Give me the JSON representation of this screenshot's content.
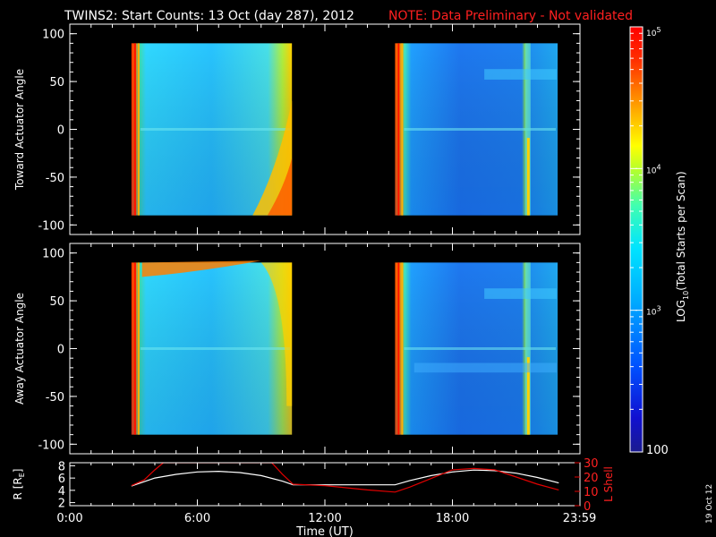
{
  "title": "TWINS2: Start Counts: 13 Oct (day 287), 2012",
  "note": "NOTE: Data Preliminary - Not validated",
  "stamp": "19 Oct 12",
  "colors": {
    "note": "#ff2020",
    "orbit_r": "#ffffff",
    "orbit_l": "#e00000"
  },
  "colorbar": {
    "label": "LOG10(Total Starts per Scan)",
    "label_main": "LOG",
    "label_sub": "10",
    "label_rest": "(Total Starts per Scan)",
    "scale": "log",
    "range": [
      100,
      100000
    ],
    "ticks": [
      {
        "value": 100000,
        "base": "10",
        "exp": "5"
      },
      {
        "value": 10000,
        "base": "10",
        "exp": "4"
      },
      {
        "value": 1000,
        "base": "10",
        "exp": "3"
      },
      {
        "value": 100,
        "base": "100",
        "exp": ""
      }
    ]
  },
  "chart_data": [
    {
      "type": "heatmap",
      "ylabel": "Toward Actuator Angle",
      "ylim": [
        -110,
        110
      ],
      "yticks": [
        "100",
        "50",
        "0",
        "-50",
        "-100"
      ],
      "xlim": [
        0,
        24
      ],
      "data_intervals_hours": [
        [
          2.9,
          10.45
        ],
        [
          15.3,
          22.95
        ]
      ]
    },
    {
      "type": "heatmap",
      "ylabel": "Away Actuator Angle",
      "ylim": [
        -110,
        110
      ],
      "yticks": [
        "100",
        "50",
        "0",
        "-50",
        "-100"
      ],
      "xlim": [
        0,
        24
      ],
      "data_intervals_hours": [
        [
          2.9,
          10.45
        ],
        [
          15.3,
          22.95
        ]
      ]
    },
    {
      "type": "line",
      "xlabel": "Time (UT)",
      "xtick_labels": [
        "0:00",
        "6:00",
        "12:00",
        "18:00",
        "23:59"
      ],
      "xticks_hours": [
        0,
        6,
        12,
        18,
        23.98
      ],
      "y_left_label": "R [RE]",
      "y_left_label_main": "R [R",
      "y_left_label_sub": "E",
      "y_left_label_end": "]",
      "y_left_ticks": [
        "2",
        "4",
        "6",
        "8"
      ],
      "y_left_range": [
        1.5,
        8.5
      ],
      "y_right_label": "L Shell",
      "y_right_ticks": [
        "0",
        "10",
        "20",
        "30"
      ],
      "y_right_range": [
        0,
        30
      ],
      "series": [
        {
          "name": "R",
          "x": [
            2.9,
            4,
            5,
            6,
            7,
            8,
            9,
            10,
            10.5,
            12,
            13,
            14,
            15.3,
            16,
            17,
            18,
            19,
            20,
            21,
            22,
            23
          ],
          "y": [
            4.7,
            6.0,
            6.6,
            7.0,
            7.1,
            6.9,
            6.4,
            5.5,
            4.9,
            4.9,
            4.9,
            4.9,
            4.9,
            5.6,
            6.4,
            7.0,
            7.3,
            7.2,
            6.8,
            6.1,
            5.2
          ]
        },
        {
          "name": "L Shell",
          "x": [
            2.9,
            3.5,
            4.0,
            4.4,
            9.5,
            10.0,
            10.5,
            12,
            13,
            14,
            15.3,
            16,
            17,
            18,
            19,
            20,
            21,
            22,
            23
          ],
          "y": [
            14,
            18,
            25,
            30,
            30,
            22,
            15,
            14,
            12.5,
            11,
            9.5,
            13,
            19,
            25,
            26,
            25,
            20,
            15,
            11
          ]
        }
      ]
    }
  ]
}
